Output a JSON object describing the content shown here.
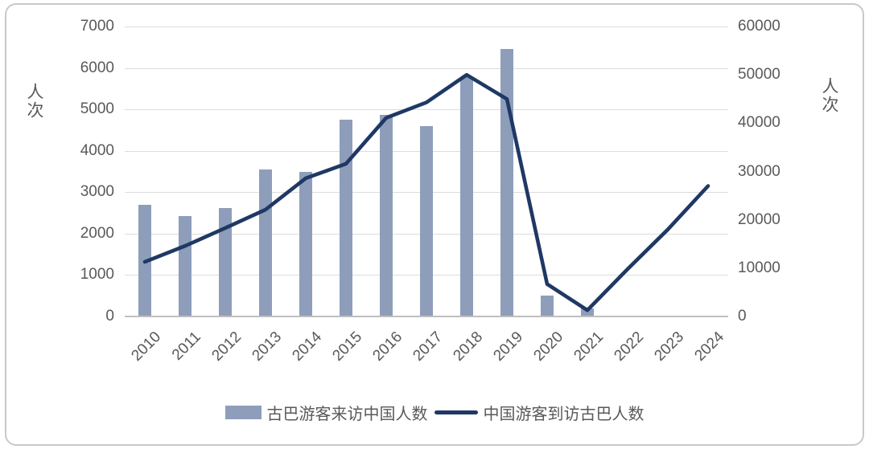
{
  "chart_data": {
    "type": "combo-bar-line-dual-axis",
    "title": "",
    "categories": [
      "2010",
      "2011",
      "2012",
      "2013",
      "2014",
      "2015",
      "2016",
      "2017",
      "2018",
      "2019",
      "2020",
      "2021",
      "2022",
      "2023",
      "2024"
    ],
    "series": [
      {
        "name": "古巴游客来访中国人数",
        "type": "bar",
        "axis": "left",
        "color": "#8E9EBA",
        "values": [
          2700,
          2430,
          2620,
          3550,
          3500,
          4760,
          4870,
          4600,
          5780,
          6450,
          510,
          200,
          null,
          null,
          null
        ]
      },
      {
        "name": "中国游客到访古巴人数",
        "type": "line",
        "axis": "right",
        "color": "#1F3864",
        "values": [
          11300,
          14600,
          18300,
          22100,
          28600,
          31600,
          41100,
          44300,
          50000,
          45000,
          6700,
          1300,
          9800,
          18000,
          27000
        ]
      }
    ],
    "left_axis": {
      "label": "人次",
      "min": 0,
      "max": 7000,
      "step": 1000
    },
    "right_axis": {
      "label": "人次",
      "min": 0,
      "max": 60000,
      "step": 10000
    },
    "grid": true,
    "legend_position": "bottom"
  },
  "colors": {
    "grid": "#DCDCDC",
    "axis_line": "#BFBFBF",
    "tick_text": "#595959",
    "frame_border": "#C9C9C9",
    "background": "#FFFFFF"
  }
}
